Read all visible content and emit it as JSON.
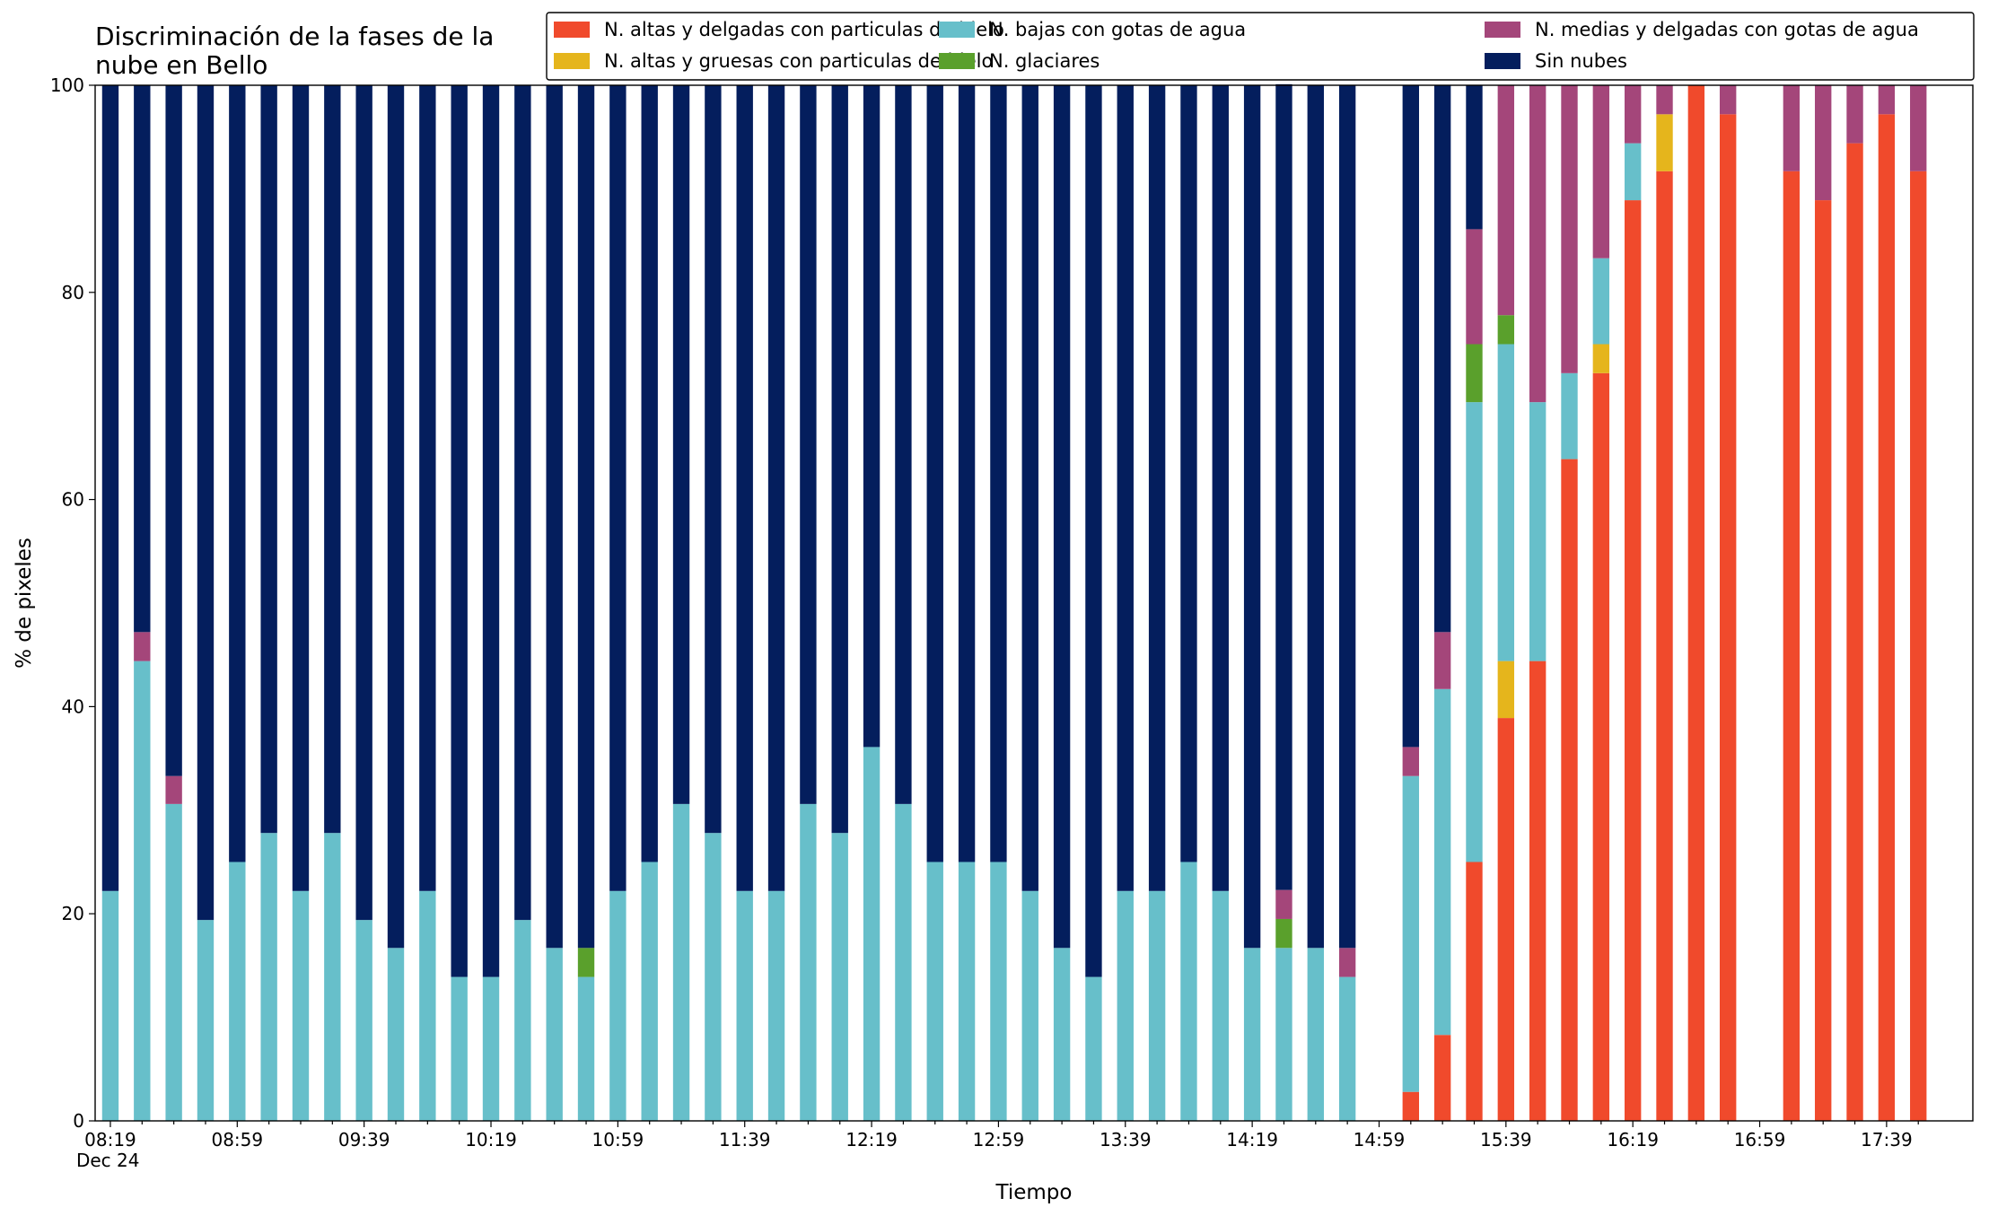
{
  "chart_data": {
    "type": "stacked_bar",
    "title": [
      "Discriminación de la fases de la",
      "nube en Bello"
    ],
    "xlabel": "Tiempo",
    "ylabel": "% de pixeles",
    "x_date_label": "Dec 24",
    "categories": [
      "08:19",
      null,
      null,
      null,
      "08:59",
      null,
      null,
      null,
      "09:39",
      null,
      null,
      null,
      "10:19",
      null,
      null,
      null,
      "10:59",
      null,
      null,
      null,
      "11:39",
      null,
      null,
      null,
      "12:19",
      null,
      null,
      null,
      "12:59",
      null,
      null,
      null,
      "13:39",
      null,
      null,
      null,
      "14:19",
      null,
      null,
      null,
      "14:59",
      null,
      null,
      null,
      "15:39",
      null,
      null,
      null,
      "16:19",
      null,
      null,
      null,
      "16:59",
      null,
      null,
      null,
      "17:39",
      null
    ],
    "ylim": [
      0,
      100
    ],
    "yticks": [
      0,
      20,
      40,
      60,
      80,
      100
    ],
    "legend": "top-right",
    "series": [
      {
        "name": "N. altas y delgadas con particulas de hielo",
        "color": "#f04a2c",
        "values": [
          0,
          0,
          0,
          0,
          0,
          0,
          0,
          0,
          0,
          0,
          0,
          0,
          0,
          0,
          0,
          0,
          0,
          0,
          0,
          0,
          0,
          0,
          0,
          0,
          0,
          0,
          0,
          0,
          0,
          0,
          0,
          0,
          0,
          0,
          0,
          0,
          0,
          0,
          0,
          0,
          null,
          2.8,
          8.3,
          25,
          38.9,
          44.4,
          63.9,
          72.2,
          88.9,
          91.7,
          100,
          97.2,
          null,
          91.7,
          88.9,
          94.4,
          97.2,
          91.7
        ]
      },
      {
        "name": "N. altas y gruesas con particulas de hielo",
        "color": "#e5b51c",
        "values": [
          0,
          0,
          0,
          0,
          0,
          0,
          0,
          0,
          0,
          0,
          0,
          0,
          0,
          0,
          0,
          0,
          0,
          0,
          0,
          0,
          0,
          0,
          0,
          0,
          0,
          0,
          0,
          0,
          0,
          0,
          0,
          0,
          0,
          0,
          0,
          0,
          0,
          0,
          0,
          0,
          null,
          0,
          0,
          0,
          5.5,
          0,
          0,
          2.8,
          0,
          5.5,
          0,
          0,
          null,
          0,
          0,
          0,
          0,
          0
        ]
      },
      {
        "name": "N. bajas con gotas de agua",
        "color": "#67bfca",
        "values": [
          22.2,
          44.4,
          30.6,
          19.4,
          25,
          27.8,
          22.2,
          27.8,
          19.4,
          16.7,
          22.2,
          13.9,
          13.9,
          19.4,
          16.7,
          13.9,
          22.2,
          25,
          30.6,
          27.8,
          22.2,
          22.2,
          30.6,
          27.8,
          36.1,
          30.6,
          25,
          25,
          25,
          22.2,
          16.7,
          13.9,
          22.2,
          22.2,
          25,
          22.2,
          16.7,
          16.7,
          16.7,
          13.9,
          null,
          30.5,
          33.4,
          44.4,
          30.6,
          25,
          8.3,
          8.3,
          5.5,
          0,
          0,
          0,
          null,
          0,
          0,
          0,
          0,
          0
        ]
      },
      {
        "name": "N. glaciares",
        "color": "#5aa02c",
        "values": [
          0,
          0,
          0,
          0,
          0,
          0,
          0,
          0,
          0,
          0,
          0,
          0,
          0,
          0,
          0,
          2.8,
          0,
          0,
          0,
          0,
          0,
          0,
          0,
          0,
          0,
          0,
          0,
          0,
          0,
          0,
          0,
          0,
          0,
          0,
          0,
          0,
          0,
          2.8,
          0,
          0,
          null,
          0,
          0,
          5.6,
          2.8,
          0,
          0,
          0,
          0,
          0,
          0,
          0,
          null,
          0,
          0,
          0,
          0,
          0
        ]
      },
      {
        "name": "N. medias y delgadas con gotas de agua",
        "color": "#a4467a",
        "values": [
          0,
          2.8,
          2.7,
          0,
          0,
          0,
          0,
          0,
          0,
          0,
          0,
          0,
          0,
          0,
          0,
          0,
          0,
          0,
          0,
          0,
          0,
          0,
          0,
          0,
          0,
          0,
          0,
          0,
          0,
          0,
          0,
          0,
          0,
          0,
          0,
          0,
          0,
          2.8,
          0,
          2.8,
          null,
          2.8,
          5.5,
          11.1,
          22.2,
          30.6,
          27.8,
          16.7,
          5.6,
          2.8,
          0,
          2.8,
          null,
          8.3,
          11.1,
          5.6,
          2.8,
          8.3
        ]
      },
      {
        "name": "Sin nubes",
        "color": "#041e5d",
        "values": [
          77.8,
          52.8,
          66.7,
          80.6,
          75,
          72.2,
          77.8,
          72.2,
          80.6,
          83.3,
          77.8,
          86.1,
          86.1,
          80.6,
          83.3,
          83.3,
          77.8,
          75,
          69.4,
          72.2,
          77.8,
          77.8,
          69.4,
          72.2,
          63.9,
          69.4,
          75,
          75,
          75,
          77.8,
          83.3,
          86.1,
          77.8,
          77.8,
          75,
          77.8,
          83.3,
          77.8,
          83.3,
          83.3,
          null,
          63.9,
          52.8,
          13.9,
          0,
          0,
          0,
          0,
          0,
          0,
          0,
          0,
          null,
          0,
          0,
          0,
          0,
          0
        ]
      }
    ]
  }
}
